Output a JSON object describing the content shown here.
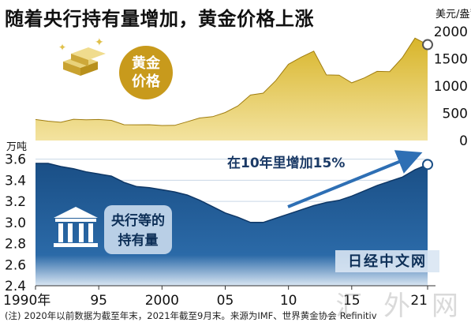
{
  "title": "随着央行持有量增加，黄金价格上涨",
  "footnote": {
    "prefix": "(注)",
    "text": "2020年以前数据为截至年末，2021年截至9月末。来源为IMF、世界黄金协会",
    "source_brand": "Refinitiv"
  },
  "watermark": "汇 外 网",
  "colors": {
    "gold_fill": "#d8b52a",
    "gold_light": "#f3e3a0",
    "blue_fill": "#1a4f86",
    "blue_light": "#9db7d4",
    "label_gold_circle": "#c89a1c",
    "label_gold_text": "#ffffff",
    "label_blue_box": "#b9cfe6",
    "label_blue_text": "#0d2f57",
    "arrow_color": "#2e6fb4"
  },
  "chart_data": [
    {
      "type": "area",
      "series": [
        {
          "name": "黄金价格",
          "x": [
            1990,
            1991,
            1992,
            1993,
            1994,
            1995,
            1996,
            1997,
            1998,
            1999,
            2000,
            2001,
            2002,
            2003,
            2004,
            2005,
            2006,
            2007,
            2008,
            2009,
            2010,
            2011,
            2012,
            2013,
            2014,
            2015,
            2016,
            2017,
            2018,
            2019,
            2020,
            2021
          ],
          "values": [
            385,
            355,
            335,
            390,
            380,
            385,
            370,
            290,
            288,
            290,
            275,
            278,
            345,
            415,
            438,
            515,
            635,
            835,
            870,
            1100,
            1400,
            1530,
            1640,
            1205,
            1200,
            1060,
            1150,
            1270,
            1265,
            1520,
            1880,
            1760
          ]
        }
      ],
      "label_line1": "黄金",
      "label_line2": "价格",
      "icon": "gold-bars-icon",
      "unit_label": "美元/盎司",
      "yticks": [
        0,
        500,
        1000,
        1500,
        2000
      ],
      "ylim": [
        0,
        2000
      ],
      "axis_side": "right"
    },
    {
      "type": "area",
      "series": [
        {
          "name": "央行等的持有量",
          "x": [
            1990,
            1991,
            1992,
            1993,
            1994,
            1995,
            1996,
            1997,
            1998,
            1999,
            2000,
            2001,
            2002,
            2003,
            2004,
            2005,
            2006,
            2007,
            2008,
            2009,
            2010,
            2011,
            2012,
            2013,
            2014,
            2015,
            2016,
            2017,
            2018,
            2019,
            2020,
            2021
          ],
          "values": [
            3.56,
            3.56,
            3.53,
            3.51,
            3.48,
            3.46,
            3.44,
            3.38,
            3.34,
            3.33,
            3.31,
            3.29,
            3.26,
            3.21,
            3.15,
            3.09,
            3.05,
            3.0,
            3.0,
            3.04,
            3.08,
            3.12,
            3.16,
            3.19,
            3.21,
            3.25,
            3.3,
            3.35,
            3.39,
            3.43,
            3.5,
            3.55
          ]
        }
      ],
      "label_line1": "央行等的",
      "label_line2": "持有量",
      "icon": "bank-building-icon",
      "unit_label": "万吨",
      "yticks": [
        2.4,
        2.6,
        2.8,
        3.0,
        3.2,
        3.4,
        3.6
      ],
      "ylim": [
        2.4,
        3.65
      ],
      "axis_side": "left",
      "annotation": "在10年里增加15%",
      "brand": "日经中文网"
    }
  ],
  "x_axis": {
    "ticks": [
      1990,
      1995,
      2000,
      2005,
      2010,
      2015,
      2021
    ],
    "tick_labels": [
      "1990年",
      "95",
      "2000",
      "05",
      "10",
      "15",
      "21"
    ]
  }
}
